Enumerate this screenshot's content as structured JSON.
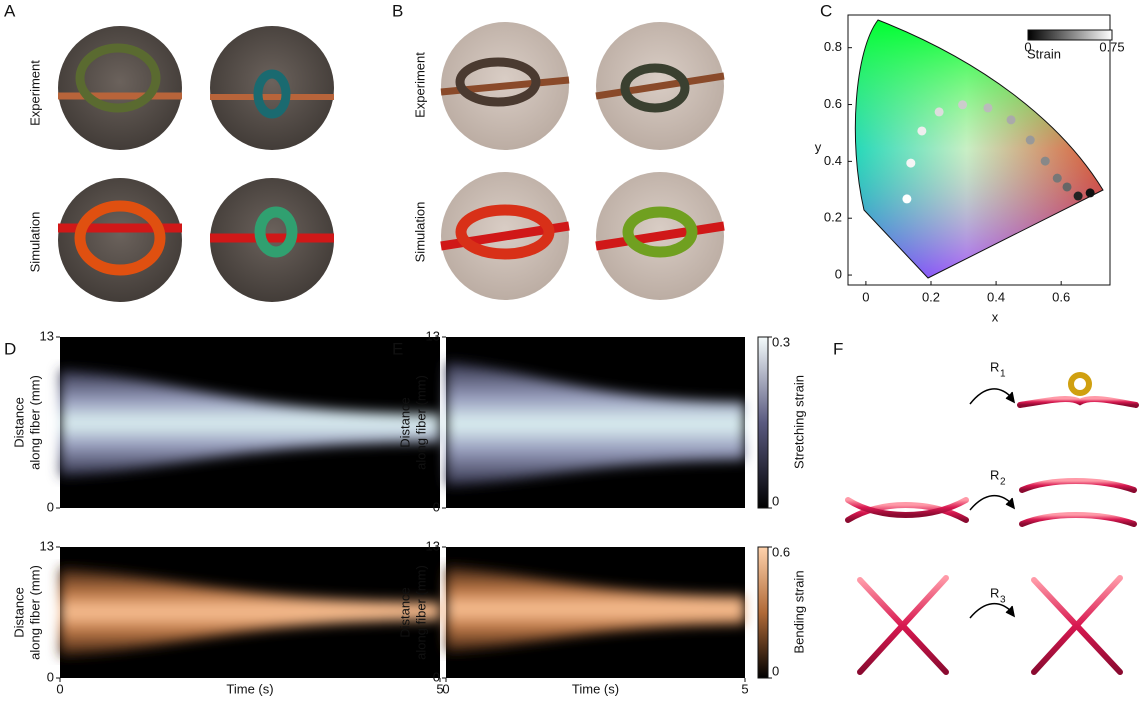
{
  "A": {
    "label": "A",
    "row_labels": [
      "Experiment",
      "Simulation"
    ]
  },
  "B": {
    "label": "B",
    "row_labels": [
      "Experiment",
      "Simulation"
    ]
  },
  "C": {
    "label": "C",
    "chart_data": {
      "type": "scatter",
      "x_label": "x",
      "y_label": "y",
      "xlim": [
        -0.055,
        0.75
      ],
      "ylim": [
        -0.035,
        0.915
      ],
      "xticks": [
        0,
        0.2,
        0.4,
        0.6
      ],
      "yticks": [
        0,
        0.2,
        0.4,
        0.6,
        0.8
      ],
      "x": [
        0.126,
        0.138,
        0.172,
        0.225,
        0.297,
        0.375,
        0.446,
        0.505,
        0.551,
        0.588,
        0.618,
        0.652,
        0.689
      ],
      "y": [
        0.268,
        0.394,
        0.507,
        0.574,
        0.599,
        0.588,
        0.546,
        0.475,
        0.401,
        0.341,
        0.31,
        0.278,
        0.289
      ],
      "strain": [
        0.75,
        0.72,
        0.7,
        0.65,
        0.6,
        0.55,
        0.5,
        0.45,
        0.4,
        0.35,
        0.3,
        0.1,
        0.05
      ],
      "colorbar": {
        "label": "Strain",
        "lim": [
          0,
          0.75
        ],
        "ticks": [
          0,
          0.75
        ]
      }
    }
  },
  "D": {
    "label": "D",
    "x_label": "Time (s)",
    "y_label": [
      "Distance",
      "along fiber (mm)"
    ],
    "xlim": [
      0,
      5
    ],
    "xticks": [
      0,
      5
    ],
    "ylim": [
      0,
      13
    ],
    "yticks": [
      0,
      13
    ]
  },
  "E": {
    "label": "E",
    "x_label": "Time (s)",
    "y_label": [
      "Distance",
      "along fiber (mm)"
    ],
    "xlim": [
      0,
      5
    ],
    "xticks": [
      0,
      5
    ],
    "ylim": [
      0,
      13
    ],
    "yticks": [
      0,
      13
    ],
    "colorbars": [
      {
        "label": "Stretching strain",
        "lim": [
          0,
          0.3
        ],
        "ticks": [
          0,
          0.3
        ]
      },
      {
        "label": "Bending strain",
        "lim": [
          0,
          0.6
        ],
        "ticks": [
          0,
          0.6
        ]
      }
    ]
  },
  "F": {
    "label": "F",
    "reactions": [
      {
        "base": "R",
        "sub": "1"
      },
      {
        "base": "R",
        "sub": "2"
      },
      {
        "base": "R",
        "sub": "3"
      }
    ]
  }
}
